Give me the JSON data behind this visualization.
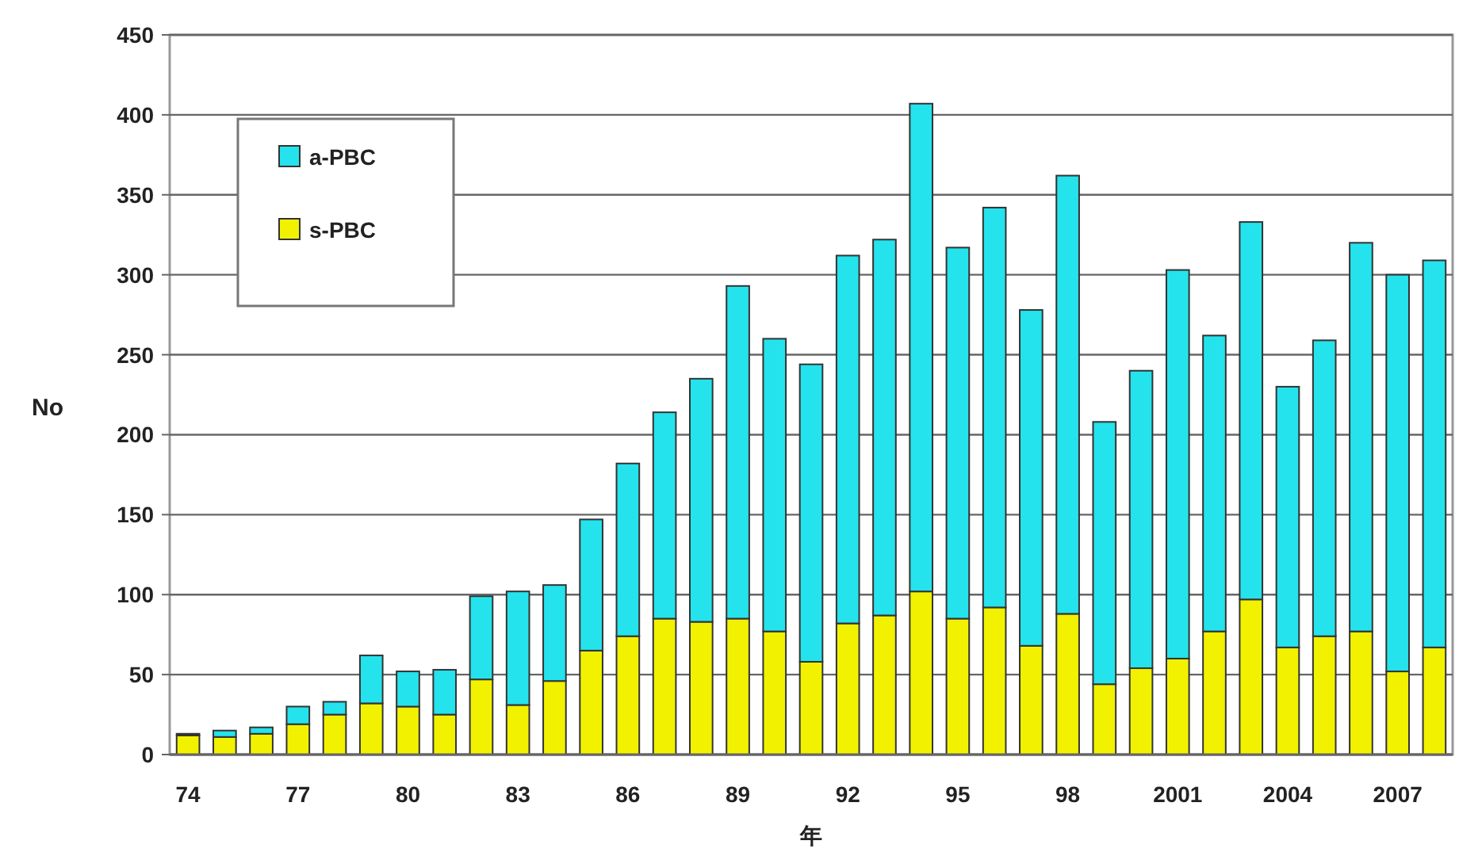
{
  "chart_data": {
    "type": "bar",
    "stacked": true,
    "xlabel": "年",
    "ylabel": "No",
    "categories": [
      "74",
      null,
      null,
      "77",
      null,
      null,
      "80",
      null,
      null,
      "83",
      null,
      null,
      "86",
      null,
      null,
      "89",
      null,
      null,
      "92",
      null,
      null,
      "95",
      null,
      null,
      "98",
      null,
      null,
      "2001",
      null,
      null,
      "2004",
      null,
      null,
      "2007",
      null
    ],
    "series": [
      {
        "name": "s-PBC",
        "color": "#f2f200",
        "values": [
          12,
          11,
          13,
          19,
          25,
          32,
          30,
          25,
          47,
          31,
          46,
          65,
          74,
          85,
          83,
          85,
          77,
          58,
          82,
          87,
          102,
          85,
          92,
          68,
          88,
          44,
          54,
          60,
          77,
          97,
          67,
          74,
          77,
          52,
          67
        ]
      },
      {
        "name": "a-PBC",
        "color": "#25e3ec",
        "values": [
          1,
          4,
          4,
          11,
          8,
          30,
          22,
          28,
          52,
          71,
          60,
          82,
          108,
          129,
          152,
          208,
          183,
          186,
          230,
          235,
          305,
          232,
          250,
          210,
          274,
          164,
          186,
          243,
          185,
          236,
          163,
          185,
          243,
          248,
          242
        ]
      }
    ],
    "ylim": [
      0,
      450
    ],
    "yticks": [
      0,
      50,
      100,
      150,
      200,
      250,
      300,
      350,
      400,
      450
    ],
    "grid": "y",
    "legend": "top left"
  }
}
